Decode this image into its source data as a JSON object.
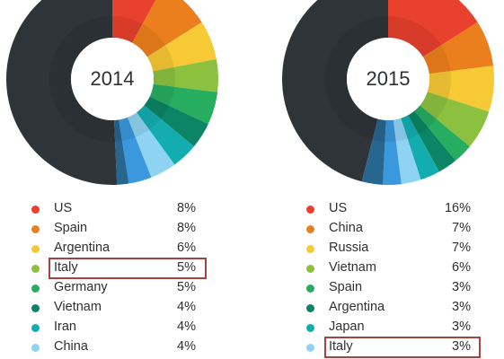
{
  "chart_data": [
    {
      "type": "pie",
      "title": "2014",
      "other_color": "#2f3439",
      "legend": [
        {
          "name": "US",
          "value": 8,
          "label": "8%",
          "color": "#e8412e",
          "highlight": false
        },
        {
          "name": "Spain",
          "value": 8,
          "label": "8%",
          "color": "#ec7f1d",
          "highlight": false
        },
        {
          "name": "Argentina",
          "value": 6,
          "label": "6%",
          "color": "#f7c935",
          "highlight": false
        },
        {
          "name": "Italy",
          "value": 5,
          "label": "5%",
          "color": "#8cc13f",
          "highlight": true
        },
        {
          "name": "Germany",
          "value": 5,
          "label": "5%",
          "color": "#27ad5f",
          "highlight": false
        },
        {
          "name": "Vietnam",
          "value": 4,
          "label": "4%",
          "color": "#0c8566",
          "highlight": false
        },
        {
          "name": "Iran",
          "value": 4,
          "label": "4%",
          "color": "#13adb0",
          "highlight": false
        },
        {
          "name": "China",
          "value": 4,
          "label": "4%",
          "color": "#8ed3f2",
          "highlight": false
        }
      ],
      "unlabeled_slices": [
        {
          "value": 3.5,
          "color": "#3b98dc"
        },
        {
          "value": 1.8,
          "color": "#27668f"
        }
      ]
    },
    {
      "type": "pie",
      "title": "2015",
      "other_color": "#2f3439",
      "legend": [
        {
          "name": "US",
          "value": 16,
          "label": "16%",
          "color": "#e8412e",
          "highlight": false
        },
        {
          "name": "China",
          "value": 7,
          "label": "7%",
          "color": "#ec7f1d",
          "highlight": false
        },
        {
          "name": "Russia",
          "value": 7,
          "label": "7%",
          "color": "#f7c935",
          "highlight": false
        },
        {
          "name": "Vietnam",
          "value": 6,
          "label": "6%",
          "color": "#8cc13f",
          "highlight": false
        },
        {
          "name": "Spain",
          "value": 3,
          "label": "3%",
          "color": "#27ad5f",
          "highlight": false
        },
        {
          "name": "Argentina",
          "value": 3,
          "label": "3%",
          "color": "#0c8566",
          "highlight": false
        },
        {
          "name": "Japan",
          "value": 3,
          "label": "3%",
          "color": "#13adb0",
          "highlight": false
        },
        {
          "name": "Italy",
          "value": 3,
          "label": "3%",
          "color": "#8ed3f2",
          "highlight": true
        }
      ],
      "unlabeled_slices": [
        {
          "value": 2.8,
          "color": "#3b98dc"
        },
        {
          "value": 3.2,
          "color": "#27668f"
        }
      ]
    }
  ]
}
